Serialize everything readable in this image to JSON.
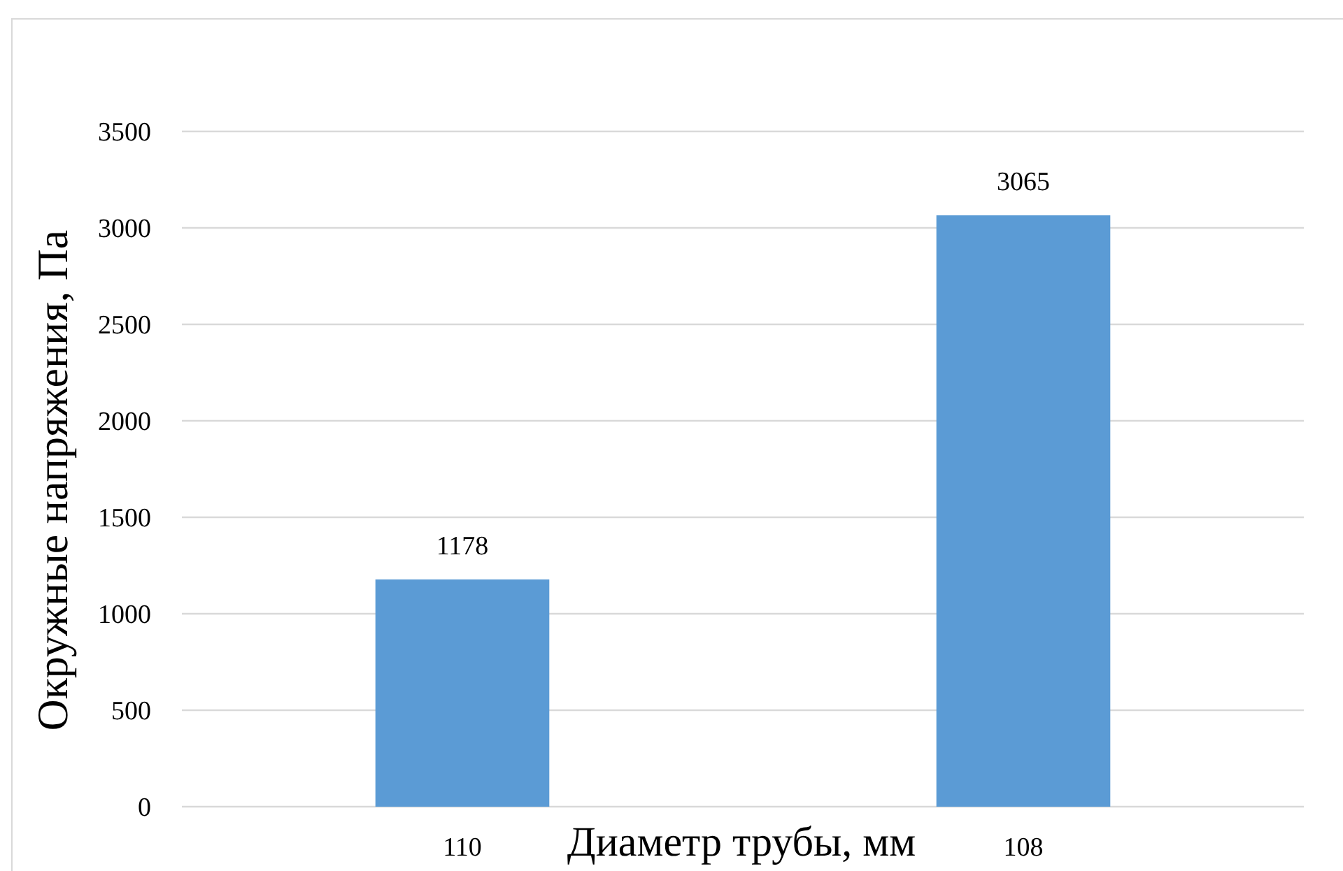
{
  "chart_data": {
    "type": "bar",
    "xlabel": "Диаметр трубы, мм",
    "ylabel": "Окружные напряжения, Па",
    "categories": [
      "110",
      "108"
    ],
    "values": [
      1178,
      3065
    ],
    "color": "#5b9bd5",
    "ylim": [
      0,
      3500
    ],
    "yticks": [
      0,
      500,
      1000,
      1500,
      2000,
      2500,
      3000,
      3500
    ],
    "grid": "y",
    "data_labels": true
  }
}
